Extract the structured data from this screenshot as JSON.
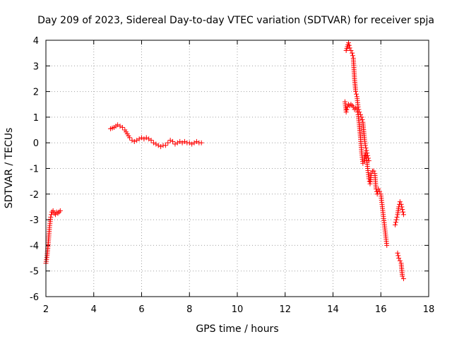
{
  "chart_data": {
    "type": "scatter",
    "title": "Day 209 of 2023, Sidereal Day-to-day VTEC variation (SDTVAR) for receiver spja",
    "xlabel": "GPS time / hours",
    "ylabel": "SDTVAR / TECUs",
    "xlim": [
      2,
      18
    ],
    "ylim": [
      -6,
      4
    ],
    "xticks": [
      2,
      4,
      6,
      8,
      10,
      12,
      14,
      16,
      18
    ],
    "yticks": [
      -6,
      -5,
      -4,
      -3,
      -2,
      -1,
      0,
      1,
      2,
      3,
      4
    ],
    "grid": true,
    "marker": "plus",
    "color": "#ff0000",
    "series": [
      {
        "name": "SDTVAR",
        "segments": [
          {
            "x": [
              2.0,
              2.05,
              2.1,
              2.15,
              2.2,
              2.25,
              2.3,
              2.35,
              2.4,
              2.45,
              2.5,
              2.55,
              2.6
            ],
            "y": [
              -4.7,
              -4.4,
              -3.9,
              -3.3,
              -2.9,
              -2.7,
              -2.65,
              -2.75,
              -2.8,
              -2.7,
              -2.75,
              -2.7,
              -2.65
            ]
          },
          {
            "x": [
              4.7,
              4.85,
              5.0,
              5.1,
              5.2,
              5.3,
              5.4,
              5.5,
              5.6,
              5.7,
              5.8,
              5.9,
              6.0,
              6.1,
              6.2,
              6.3,
              6.4,
              6.5,
              6.6,
              6.7,
              6.8,
              6.9,
              7.0,
              7.1,
              7.2,
              7.3,
              7.4,
              7.5,
              7.6,
              7.7,
              7.8,
              7.9,
              8.0,
              8.1,
              8.2,
              8.3,
              8.4,
              8.5
            ],
            "y": [
              0.55,
              0.6,
              0.7,
              0.65,
              0.6,
              0.5,
              0.35,
              0.2,
              0.1,
              0.05,
              0.1,
              0.15,
              0.2,
              0.15,
              0.2,
              0.15,
              0.1,
              0.0,
              -0.05,
              -0.1,
              -0.15,
              -0.1,
              -0.1,
              0.0,
              0.1,
              0.05,
              -0.05,
              0.0,
              0.05,
              0.0,
              0.05,
              0.0,
              0.0,
              -0.05,
              0.0,
              0.05,
              0.0,
              0.0
            ]
          },
          {
            "x": [
              14.5,
              14.55,
              14.6,
              14.65,
              14.7,
              14.75,
              14.8,
              14.85,
              14.9,
              14.95,
              15.0,
              15.05,
              15.1,
              15.15,
              15.2,
              15.25,
              15.3,
              15.35,
              15.4,
              15.45,
              15.5,
              15.55,
              15.6,
              15.65,
              15.7,
              15.75,
              15.8,
              15.85,
              15.9,
              15.95,
              16.0,
              16.05,
              16.1,
              16.15,
              16.2,
              16.25
            ],
            "y": [
              1.6,
              1.2,
              1.4,
              1.5,
              1.45,
              1.5,
              1.45,
              1.4,
              1.3,
              1.35,
              1.3,
              1.1,
              0.7,
              0.2,
              -0.4,
              -0.8,
              -0.7,
              -0.4,
              -0.6,
              -1.0,
              -1.4,
              -1.6,
              -1.2,
              -1.1,
              -1.1,
              -1.2,
              -1.8,
              -2.0,
              -1.8,
              -1.9,
              -2.0,
              -2.4,
              -2.8,
              -3.2,
              -3.6,
              -4.0
            ]
          },
          {
            "x": [
              14.55,
              14.6,
              14.65,
              14.7,
              14.75,
              14.8,
              14.85,
              14.9,
              14.95,
              15.0,
              15.05,
              15.1,
              15.15,
              15.2,
              15.25,
              15.3,
              15.35,
              15.4,
              15.45,
              15.5
            ],
            "y": [
              3.6,
              3.75,
              3.9,
              3.7,
              3.6,
              3.5,
              3.3,
              2.5,
              2.0,
              1.8,
              1.4,
              1.2,
              1.1,
              1.0,
              0.8,
              0.3,
              -0.1,
              -0.3,
              -0.5,
              -0.7
            ]
          },
          {
            "x": [
              16.6,
              16.65,
              16.7,
              16.75,
              16.8,
              16.85,
              16.9,
              16.95
            ],
            "y": [
              -3.2,
              -3.0,
              -2.8,
              -2.5,
              -2.3,
              -2.4,
              -2.6,
              -2.8
            ]
          },
          {
            "x": [
              16.7,
              16.75,
              16.8,
              16.85,
              16.9,
              16.95
            ],
            "y": [
              -4.3,
              -4.5,
              -4.6,
              -4.7,
              -5.2,
              -5.3
            ]
          }
        ]
      }
    ]
  }
}
